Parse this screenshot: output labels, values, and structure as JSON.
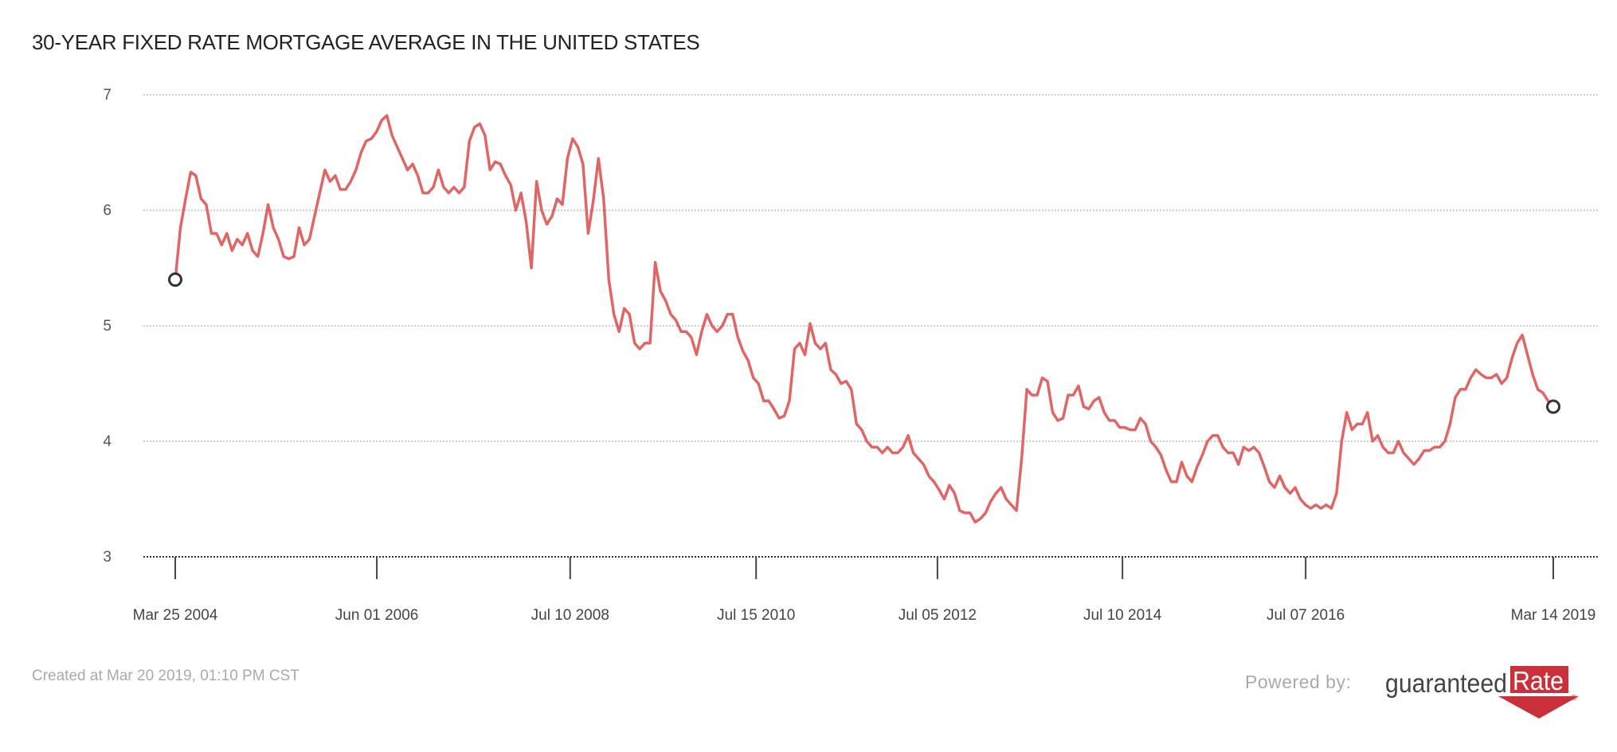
{
  "title": "30-YEAR FIXED RATE MORTGAGE AVERAGE IN THE UNITED STATES",
  "footer": {
    "created": "Created at Mar 20 2019, 01:10 PM CST",
    "powered_by": "Powered by:",
    "logo_text": "guaranteedRate"
  },
  "colors": {
    "line": "#e06666",
    "marker": "#333333",
    "grid": "#bbbbbb",
    "logo_red": "#c9303a"
  },
  "chart_data": {
    "type": "line",
    "title": "30-YEAR FIXED RATE MORTGAGE AVERAGE IN THE UNITED STATES",
    "xlabel": "",
    "ylabel": "",
    "ylim": [
      3,
      7
    ],
    "yticks": [
      3,
      4,
      5,
      6,
      7
    ],
    "grid": true,
    "x_range_decimal_years": [
      2004.23,
      2019.2
    ],
    "xticks": [
      {
        "label": "Mar 25 2004",
        "year": 2004.23
      },
      {
        "label": "Jun 01 2006",
        "year": 2006.42
      },
      {
        "label": "Jul 10 2008",
        "year": 2008.52
      },
      {
        "label": "Jul 15 2010",
        "year": 2010.54
      },
      {
        "label": "Jul 05 2012",
        "year": 2012.51
      },
      {
        "label": "Jul 10 2014",
        "year": 2014.52
      },
      {
        "label": "Jul 07 2016",
        "year": 2016.51
      },
      {
        "label": "Mar 14 2019",
        "year": 2019.2
      }
    ],
    "series": [
      {
        "name": "30-year fixed rate",
        "start": "Mar 25 2004",
        "end": "Mar 14 2019",
        "note": "values evenly spaced in time between start and end",
        "values": [
          5.4,
          5.85,
          6.1,
          6.33,
          6.3,
          6.1,
          6.05,
          5.8,
          5.8,
          5.7,
          5.8,
          5.65,
          5.75,
          5.7,
          5.8,
          5.65,
          5.6,
          5.8,
          6.05,
          5.85,
          5.75,
          5.6,
          5.58,
          5.6,
          5.85,
          5.7,
          5.75,
          5.95,
          6.15,
          6.35,
          6.25,
          6.3,
          6.18,
          6.18,
          6.25,
          6.35,
          6.5,
          6.6,
          6.62,
          6.68,
          6.78,
          6.82,
          6.65,
          6.55,
          6.45,
          6.35,
          6.4,
          6.3,
          6.15,
          6.15,
          6.2,
          6.35,
          6.2,
          6.15,
          6.2,
          6.15,
          6.2,
          6.6,
          6.72,
          6.75,
          6.65,
          6.35,
          6.42,
          6.4,
          6.3,
          6.22,
          6.0,
          6.15,
          5.9,
          5.5,
          6.25,
          6.0,
          5.88,
          5.95,
          6.1,
          6.05,
          6.45,
          6.62,
          6.55,
          6.4,
          5.8,
          6.08,
          6.45,
          6.1,
          5.4,
          5.1,
          4.95,
          5.15,
          5.1,
          4.85,
          4.8,
          4.85,
          4.85,
          5.55,
          5.3,
          5.22,
          5.1,
          5.05,
          4.95,
          4.95,
          4.9,
          4.75,
          4.95,
          5.1,
          5.0,
          4.95,
          5.0,
          5.1,
          5.1,
          4.9,
          4.78,
          4.7,
          4.55,
          4.5,
          4.35,
          4.35,
          4.28,
          4.2,
          4.22,
          4.35,
          4.8,
          4.85,
          4.75,
          5.02,
          4.85,
          4.8,
          4.85,
          4.62,
          4.58,
          4.5,
          4.52,
          4.45,
          4.15,
          4.1,
          4.0,
          3.95,
          3.95,
          3.9,
          3.95,
          3.9,
          3.9,
          3.95,
          4.05,
          3.9,
          3.85,
          3.8,
          3.7,
          3.65,
          3.58,
          3.5,
          3.62,
          3.55,
          3.4,
          3.38,
          3.38,
          3.3,
          3.33,
          3.38,
          3.48,
          3.55,
          3.6,
          3.5,
          3.45,
          3.4,
          3.85,
          4.45,
          4.4,
          4.4,
          4.55,
          4.52,
          4.25,
          4.18,
          4.2,
          4.4,
          4.4,
          4.48,
          4.3,
          4.28,
          4.35,
          4.38,
          4.25,
          4.18,
          4.18,
          4.12,
          4.12,
          4.1,
          4.1,
          4.2,
          4.15,
          4.0,
          3.95,
          3.88,
          3.75,
          3.65,
          3.65,
          3.82,
          3.7,
          3.65,
          3.78,
          3.88,
          4.0,
          4.05,
          4.05,
          3.95,
          3.9,
          3.9,
          3.8,
          3.95,
          3.92,
          3.95,
          3.9,
          3.78,
          3.65,
          3.6,
          3.7,
          3.6,
          3.55,
          3.6,
          3.5,
          3.45,
          3.42,
          3.45,
          3.42,
          3.45,
          3.42,
          3.55,
          4.0,
          4.25,
          4.1,
          4.15,
          4.15,
          4.25,
          4.0,
          4.05,
          3.95,
          3.9,
          3.9,
          4.0,
          3.9,
          3.85,
          3.8,
          3.85,
          3.92,
          3.92,
          3.95,
          3.95,
          4.0,
          4.15,
          4.38,
          4.45,
          4.45,
          4.55,
          4.62,
          4.58,
          4.55,
          4.55,
          4.58,
          4.5,
          4.55,
          4.72,
          4.85,
          4.92,
          4.75,
          4.58,
          4.45,
          4.42,
          4.35,
          4.3
        ]
      }
    ]
  }
}
